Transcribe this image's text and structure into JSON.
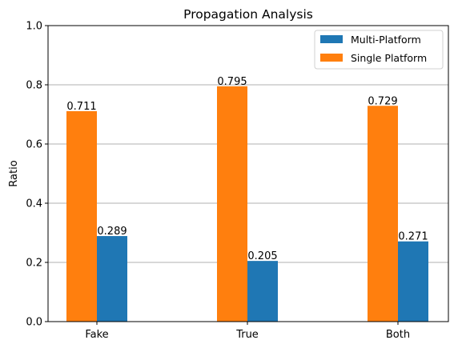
{
  "chart_data": {
    "type": "bar",
    "title": "Propagation Analysis",
    "xlabel": "",
    "ylabel": "Ratio",
    "categories": [
      "Fake",
      "True",
      "Both"
    ],
    "series": [
      {
        "name": "Single Platform",
        "values": [
          0.711,
          0.795,
          0.729
        ],
        "color": "#ff7f0e"
      },
      {
        "name": "Multi-Platform",
        "values": [
          0.289,
          0.205,
          0.271
        ],
        "color": "#1f77b4"
      }
    ],
    "data_labels": {
      "Single Platform": [
        "0.711",
        "0.795",
        "0.729"
      ],
      "Multi-Platform": [
        "0.289",
        "0.205",
        "0.271"
      ]
    },
    "ylim": [
      0,
      1.0
    ],
    "yticks": [
      "0.0",
      "0.2",
      "0.4",
      "0.6",
      "0.8",
      "1.0"
    ],
    "grid": "y-major",
    "legend": {
      "position": "top-right",
      "entries": [
        "Multi-Platform",
        "Single Platform"
      ]
    }
  }
}
